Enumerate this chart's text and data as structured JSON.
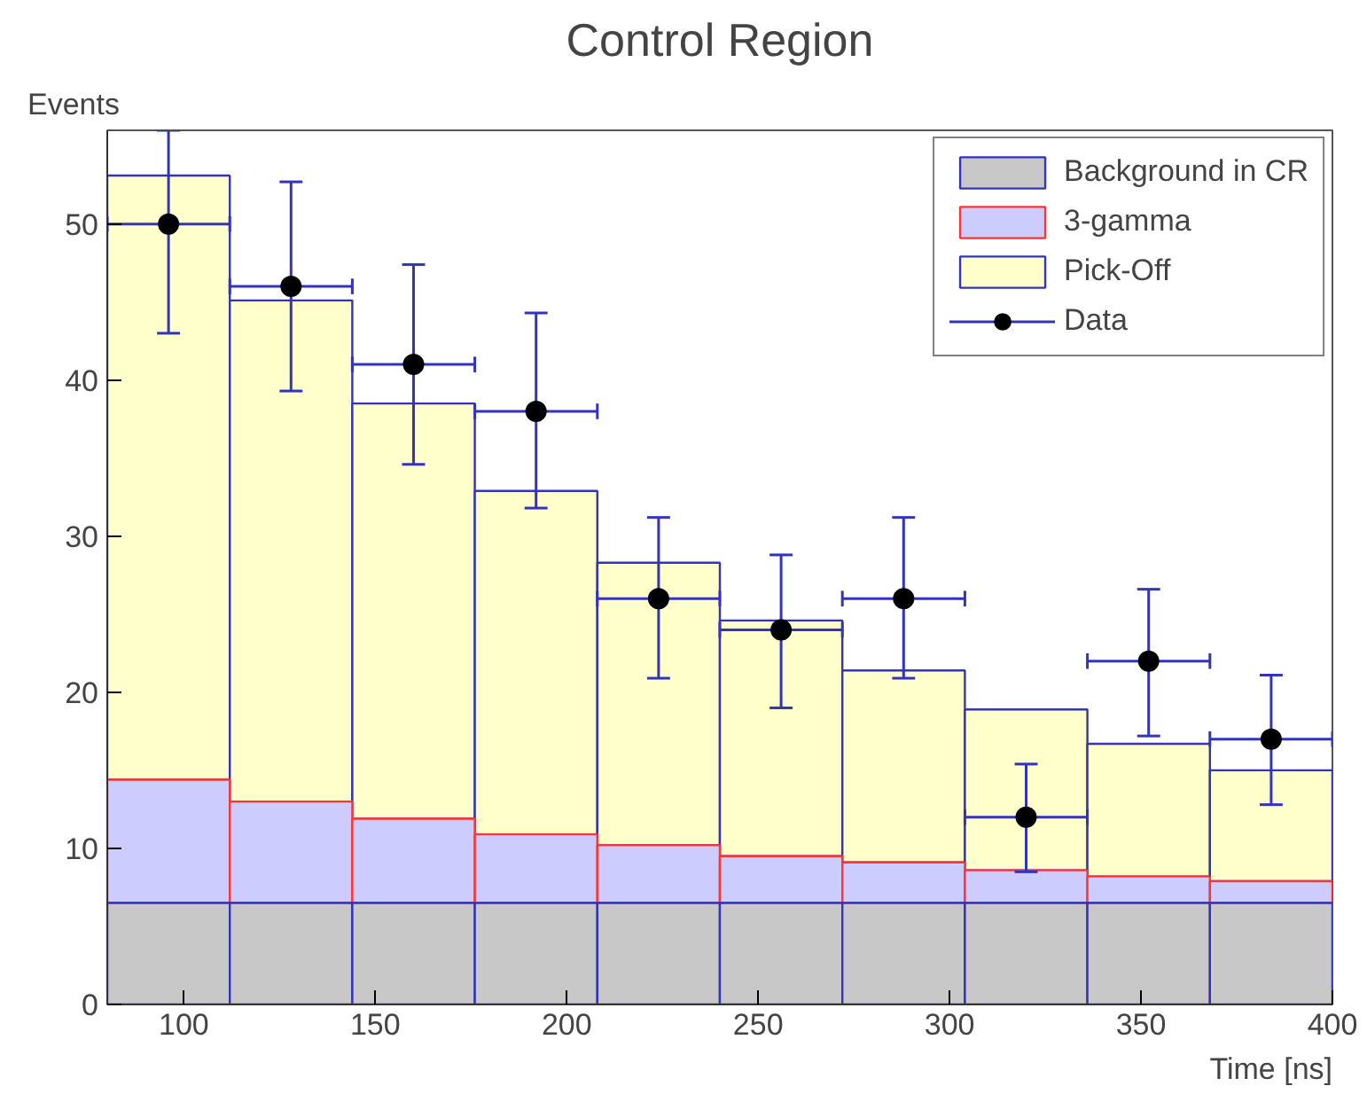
{
  "chart_data": {
    "type": "bar",
    "title": "Control Region",
    "xlabel": "Time [ns]",
    "ylabel": "Events",
    "x": [
      96,
      128,
      160,
      192,
      224,
      256,
      288,
      320,
      352,
      384
    ],
    "stacked": true,
    "series": [
      {
        "name": "Background in CR",
        "color": "#c8c8c8",
        "values": [
          6.5,
          6.5,
          6.5,
          6.5,
          6.5,
          6.5,
          6.5,
          6.5,
          6.5,
          6.5
        ]
      },
      {
        "name": "3-gamma",
        "color": "#ccccff",
        "values": [
          7.9,
          6.5,
          5.4,
          4.4,
          3.7,
          3.0,
          2.6,
          2.1,
          1.7,
          1.4
        ]
      },
      {
        "name": "Pick-Off",
        "color": "#ffffcc",
        "values": [
          38.7,
          32.1,
          26.6,
          22.0,
          18.1,
          15.1,
          12.3,
          10.3,
          8.5,
          7.1
        ]
      },
      {
        "name": "Data",
        "type": "scatter",
        "color": "#000000",
        "x": [
          96,
          128,
          160,
          192,
          224,
          256,
          288,
          320,
          352,
          384
        ],
        "values": [
          50,
          46,
          41,
          38,
          26,
          24,
          26,
          12,
          22,
          17
        ],
        "errors": [
          [
            43.0,
            56
          ],
          [
            39.3,
            52.7
          ],
          [
            34.6,
            47.4
          ],
          [
            31.8,
            44.3
          ],
          [
            20.9,
            31.2
          ],
          [
            19.0,
            28.8
          ],
          [
            20.9,
            31.2
          ],
          [
            8.5,
            15.4
          ],
          [
            17.2,
            26.6
          ],
          [
            12.8,
            21.1
          ]
        ],
        "xerrors": [
          16,
          16,
          16,
          16,
          16,
          16,
          16,
          16,
          16,
          16
        ]
      }
    ],
    "xlim": [
      80,
      400
    ],
    "ylim": [
      0,
      56
    ],
    "xticks": [
      100,
      150,
      200,
      250,
      300,
      350,
      400
    ],
    "yticks": [
      0,
      10,
      20,
      30,
      40,
      50
    ],
    "grid": false,
    "legend": "top right",
    "marker": "circle"
  }
}
